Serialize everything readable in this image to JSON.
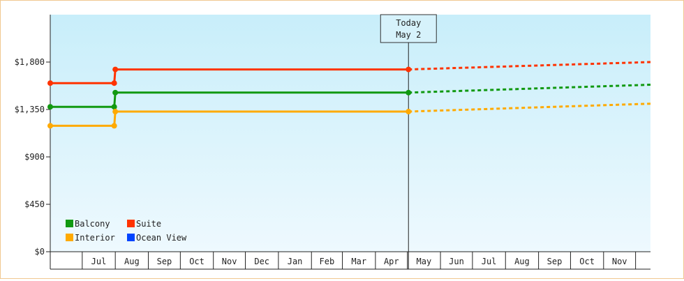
{
  "chart_data": {
    "type": "line",
    "title": "",
    "xlabel": "",
    "ylabel": "",
    "ylim": [
      0,
      2250
    ],
    "yticks": [
      {
        "value": 0,
        "label": "$0"
      },
      {
        "value": 450,
        "label": "$450"
      },
      {
        "value": 900,
        "label": "$900"
      },
      {
        "value": 1350,
        "label": "$1,350"
      },
      {
        "value": 1800,
        "label": "$1,800"
      }
    ],
    "xlim": [
      "2023-06-01",
      "2024-12-15"
    ],
    "months": [
      {
        "label": "Jul",
        "date": "2023-07-01"
      },
      {
        "label": "Aug",
        "date": "2023-08-01"
      },
      {
        "label": "Sep",
        "date": "2023-09-01"
      },
      {
        "label": "Oct",
        "date": "2023-10-01"
      },
      {
        "label": "Nov",
        "date": "2023-11-01"
      },
      {
        "label": "Dec",
        "date": "2023-12-01"
      },
      {
        "label": "Jan",
        "date": "2024-01-01"
      },
      {
        "label": "Feb",
        "date": "2024-02-01"
      },
      {
        "label": "Mar",
        "date": "2024-03-01"
      },
      {
        "label": "Apr",
        "date": "2024-04-01"
      },
      {
        "label": "May",
        "date": "2024-05-01"
      },
      {
        "label": "Jun",
        "date": "2024-06-01"
      },
      {
        "label": "Jul",
        "date": "2024-07-01"
      },
      {
        "label": "Aug",
        "date": "2024-08-01"
      },
      {
        "label": "Sep",
        "date": "2024-09-01"
      },
      {
        "label": "Oct",
        "date": "2024-10-01"
      },
      {
        "label": "Nov",
        "date": "2024-11-01"
      },
      {
        "label": "",
        "date": "2024-12-01"
      }
    ],
    "today": {
      "line1": "Today",
      "line2": "May 2",
      "date": "2024-05-02"
    },
    "series": [
      {
        "name": "Suite",
        "color": "#ff3300",
        "history": [
          [
            "2023-06-01",
            1600
          ],
          [
            "2023-07-31",
            1600
          ],
          [
            "2023-08-01",
            1730
          ],
          [
            "2024-05-02",
            1730
          ]
        ],
        "forecast": [
          [
            "2024-05-02",
            1730
          ],
          [
            "2024-12-15",
            1800
          ]
        ]
      },
      {
        "name": "Balcony",
        "color": "#119911",
        "history": [
          [
            "2023-06-01",
            1375
          ],
          [
            "2023-07-31",
            1375
          ],
          [
            "2023-08-01",
            1510
          ],
          [
            "2024-05-02",
            1510
          ]
        ],
        "forecast": [
          [
            "2024-05-02",
            1510
          ],
          [
            "2024-12-15",
            1585
          ]
        ]
      },
      {
        "name": "Interior",
        "color": "#ffaa00",
        "history": [
          [
            "2023-06-01",
            1195
          ],
          [
            "2023-07-31",
            1195
          ],
          [
            "2023-08-01",
            1330
          ],
          [
            "2024-05-02",
            1330
          ]
        ],
        "forecast": [
          [
            "2024-05-02",
            1330
          ],
          [
            "2024-12-15",
            1405
          ]
        ]
      },
      {
        "name": "Ocean View",
        "color": "#0044ff",
        "history": [],
        "forecast": []
      }
    ],
    "legend": {
      "placement": "bottom-left",
      "rows": [
        [
          "Balcony",
          "Suite"
        ],
        [
          "Interior",
          "Ocean View"
        ]
      ]
    }
  }
}
